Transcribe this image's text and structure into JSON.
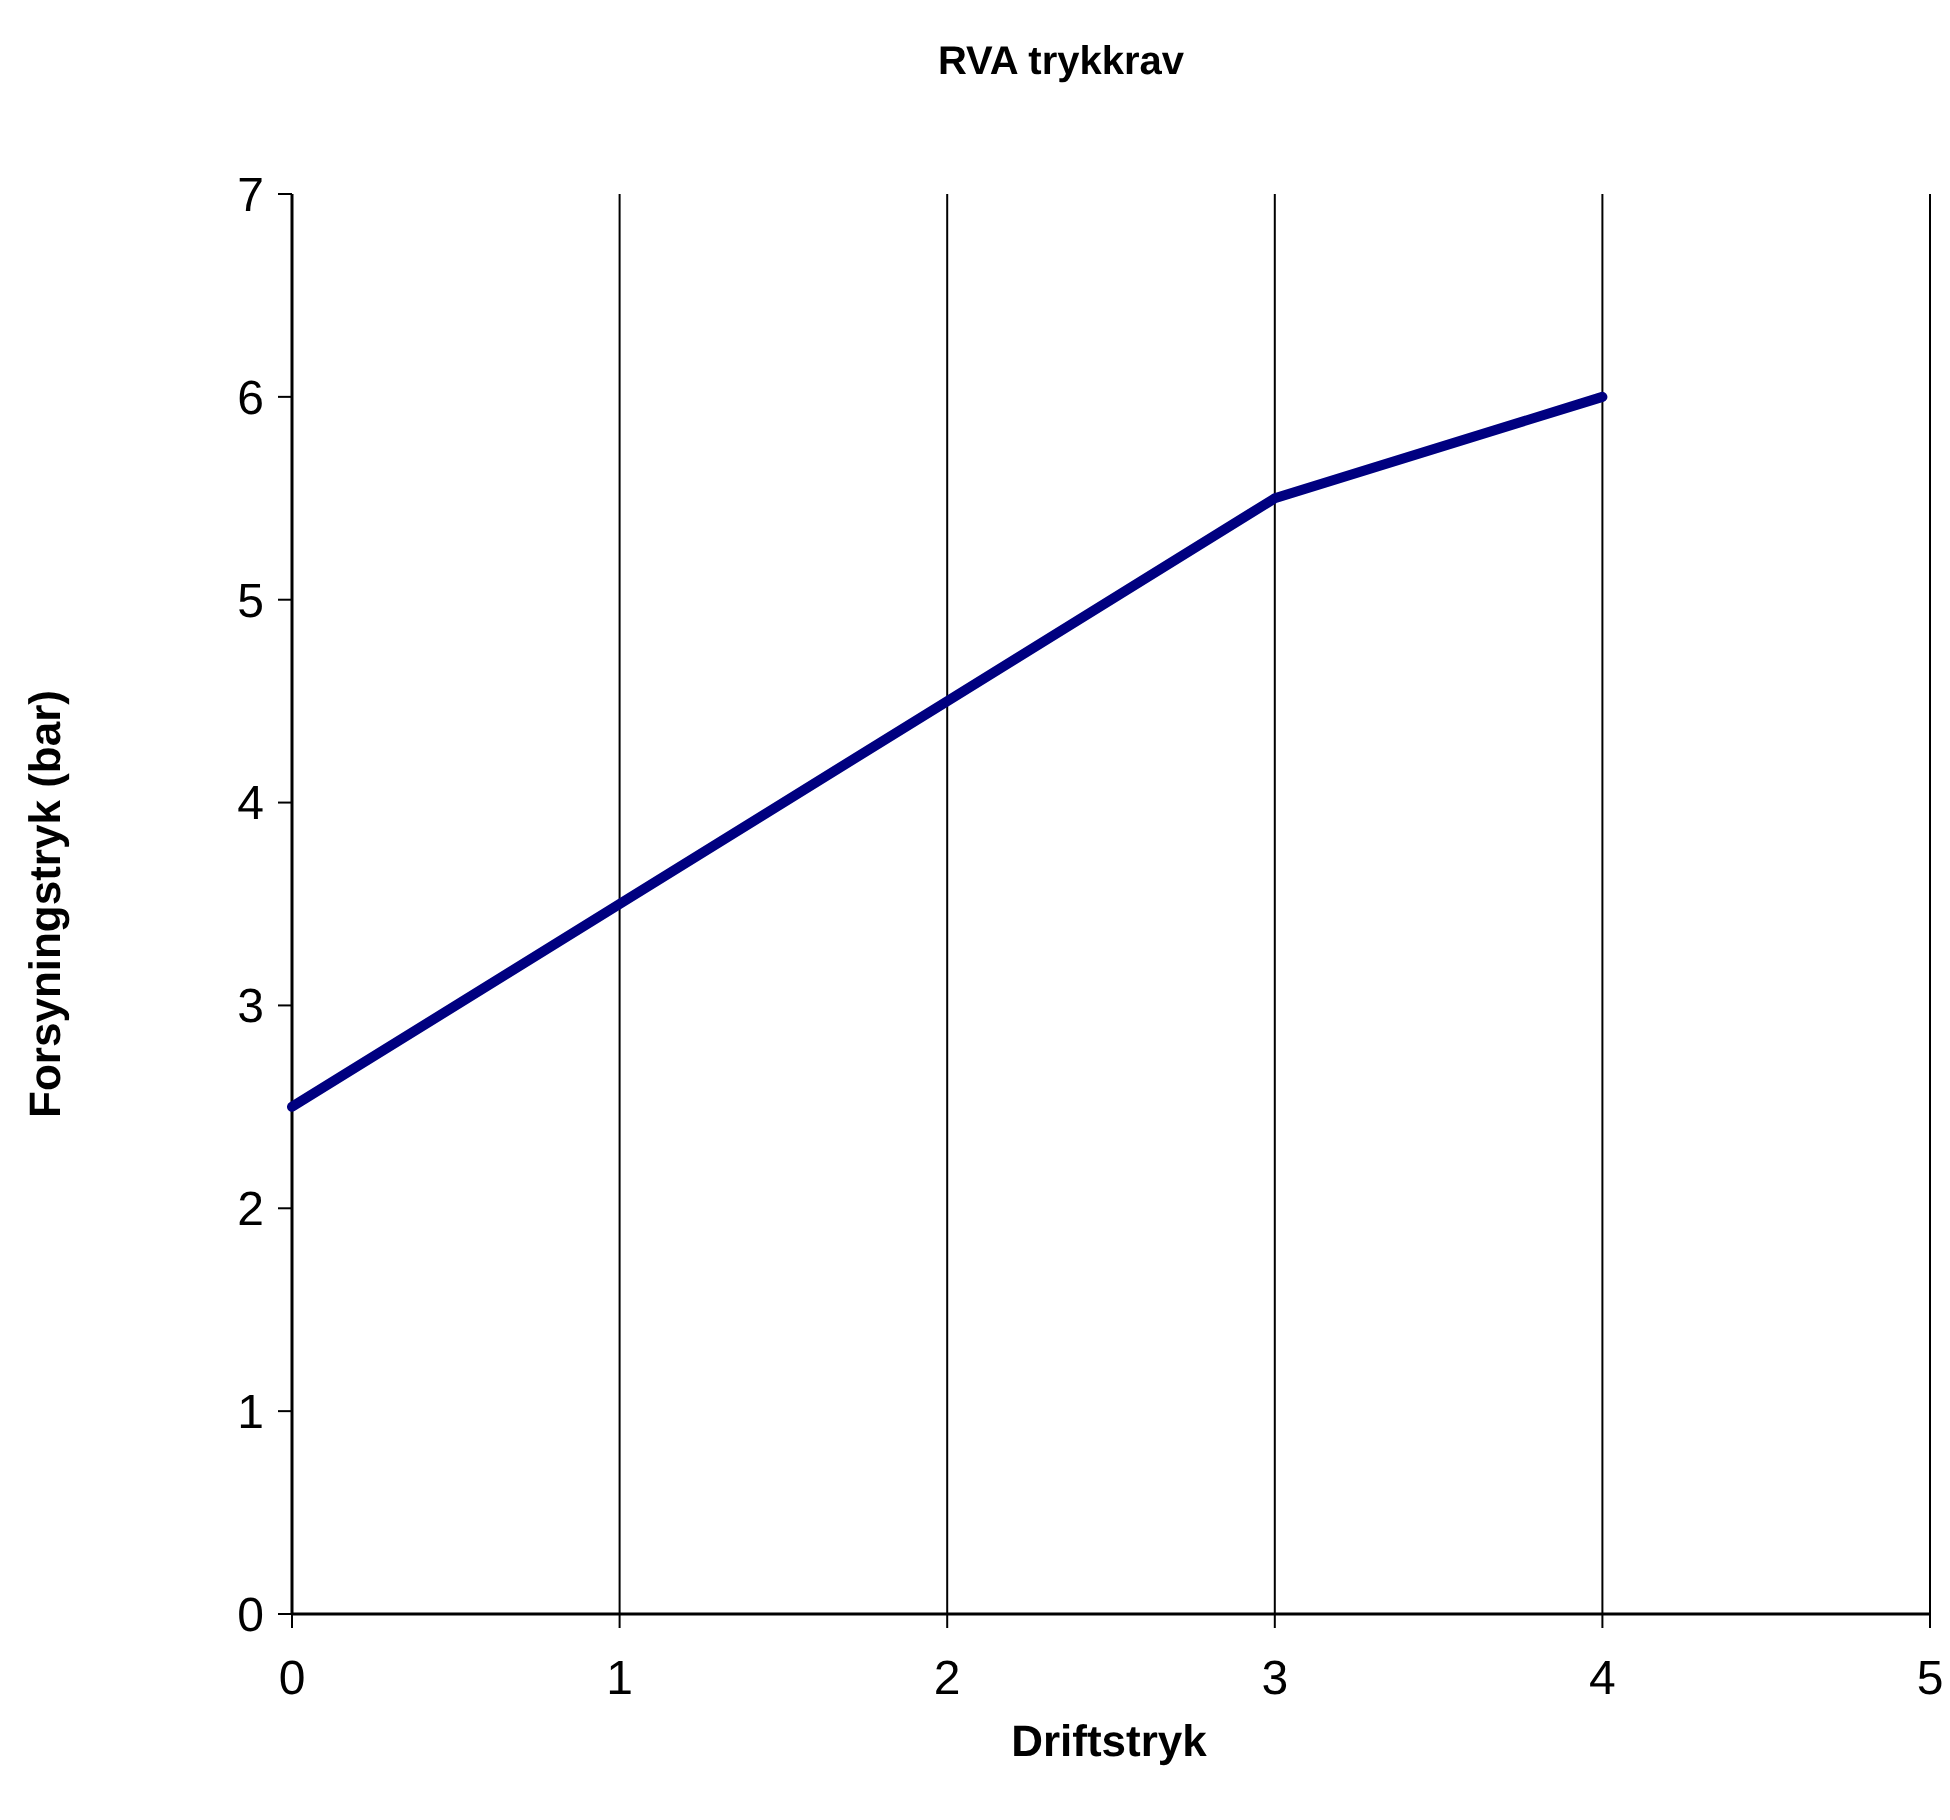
{
  "chart_data": {
    "type": "line",
    "title": "RVA trykkrav",
    "xlabel": "Driftstryk",
    "ylabel": "Forsyningstryk (bar)",
    "x": [
      0,
      1,
      2,
      3,
      4
    ],
    "series": [
      {
        "color": "#000080",
        "values": [
          2.5,
          3.5,
          4.5,
          5.5,
          6
        ]
      }
    ],
    "xlim": [
      0,
      5
    ],
    "xticks": [
      0,
      1,
      2,
      3,
      4,
      5
    ],
    "ylim": [
      0,
      7
    ],
    "yticks": [
      0,
      1,
      2,
      3,
      4,
      5,
      6,
      7
    ],
    "grid": "x",
    "marker": "none",
    "line_style": "solid"
  }
}
